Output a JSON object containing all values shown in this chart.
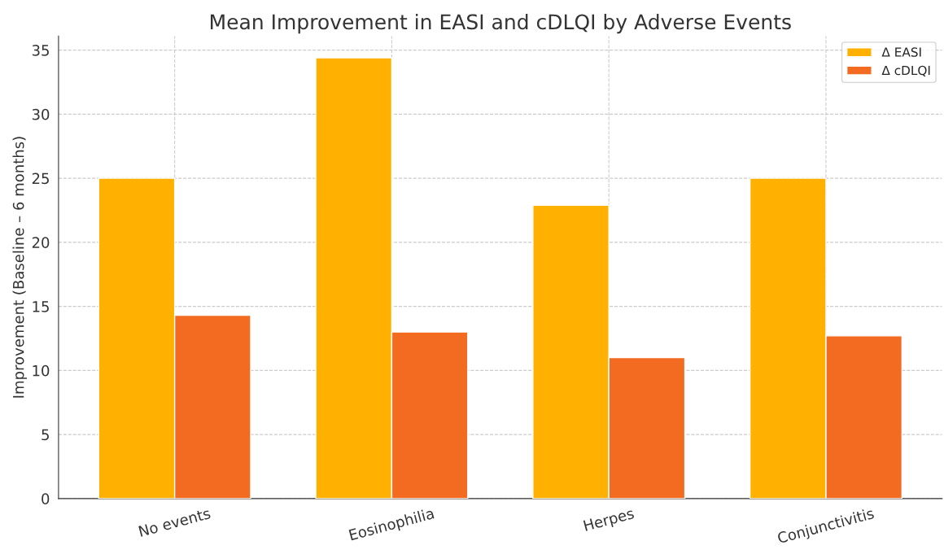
{
  "chart_data": {
    "type": "bar",
    "title": "Mean Improvement in EASI and cDLQI by Adverse Events",
    "ylabel": "Improvement (Baseline – 6 months)",
    "categories": [
      "No events",
      "Eosinophilia",
      "Herpes",
      "Conjunctivitis"
    ],
    "series": [
      {
        "name": "Δ EASI",
        "color": "#ffb000",
        "values": [
          25.0,
          34.4,
          22.9,
          25.0
        ]
      },
      {
        "name": "Δ cDLQI",
        "color": "#f26b21",
        "values": [
          14.3,
          13.0,
          11.0,
          12.7
        ]
      }
    ],
    "ylim": [
      0,
      36.1
    ],
    "yticks": [
      0,
      5,
      10,
      15,
      20,
      25,
      30,
      35
    ],
    "grid": true,
    "legend": "top right"
  }
}
